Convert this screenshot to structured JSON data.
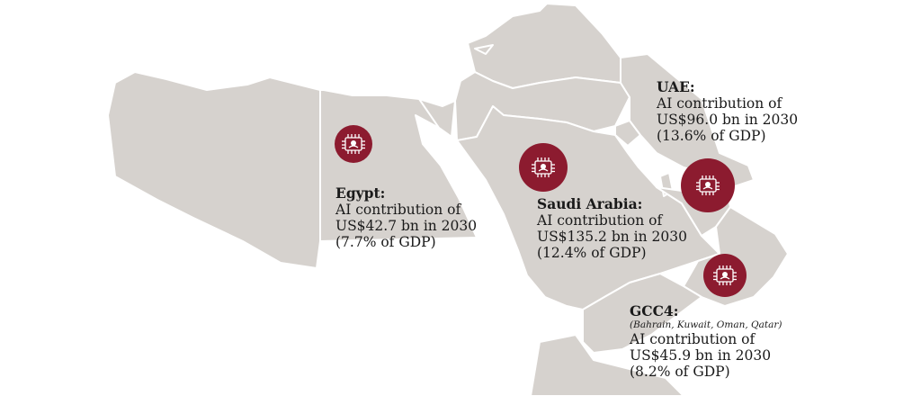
{
  "colors": {
    "land": "#d6d2ce",
    "border": "#ffffff",
    "marker": "#8c1b2f",
    "text": "#1a1a1a"
  },
  "marker_icon": "chip-icon",
  "regions": {
    "egypt": {
      "name": "Egypt:",
      "line1": "AI contribution of",
      "line2": "US$42.7 bn in 2030",
      "line3": "(7.7% of GDP)"
    },
    "saudi": {
      "name": "Saudi Arabia:",
      "line1": "AI contribution of",
      "line2": "US$135.2 bn in 2030",
      "line3": "(12.4% of GDP)"
    },
    "uae": {
      "name": "UAE:",
      "line1": "AI contribution of",
      "line2": "US$96.0 bn in 2030",
      "line3": "(13.6% of GDP)"
    },
    "gcc4": {
      "name": "GCC4:",
      "subtitle": "(Bahrain, Kuwait, Oman, Qatar)",
      "line1": "AI contribution of",
      "line2": "US$45.9 bn in 2030",
      "line3": "(8.2% of GDP)"
    }
  }
}
